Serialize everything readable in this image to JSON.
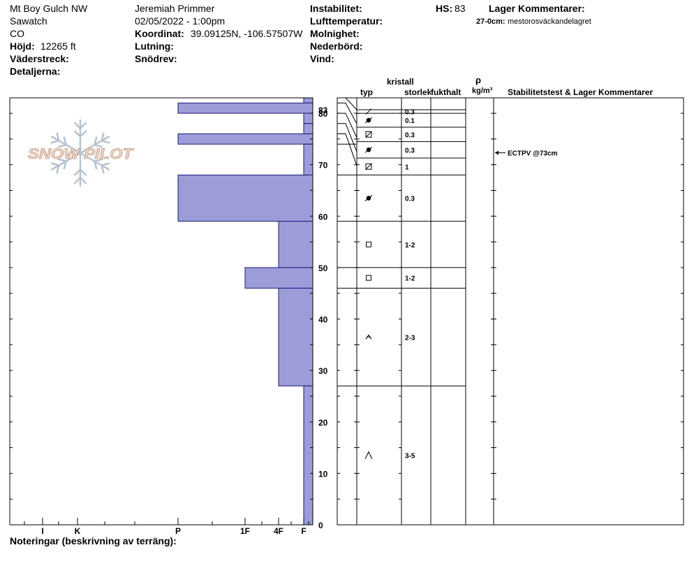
{
  "header": {
    "location": "Mt Boy Gulch NW",
    "range": "Sawatch",
    "state": "CO",
    "elevation_label": "Höjd:",
    "elevation_value": "12265 ft",
    "aspect_label": "Väderstreck:",
    "details_label": "Detaljerna:",
    "observer": "Jeremiah Primmer",
    "datetime": "02/05/2022 - 1:00pm",
    "coord_label": "Koordinat:",
    "coord_value": "39.09125N, -106.57507W",
    "slope_label": "Lutning:",
    "wind_loading_label": "Snödrev:",
    "instability_label": "Instabilitet:",
    "air_temp_label": "Lufttemperatur:",
    "sky_label": "Molnighet:",
    "precip_label": "Nederbörd:",
    "wind_label": "Vind:",
    "hs_label": "HS:",
    "hs_value": "83",
    "layer_comments_label": "Lager Kommentarer:",
    "layer_comment_range": "27-0cm:",
    "layer_comment_text": "mestorosväckandelagret"
  },
  "columns": {
    "crystal": "kristall",
    "type": "typ",
    "size": "storlek",
    "moisture": "fukthalt",
    "rho": "ρ",
    "density_unit": "kg/m³",
    "stability": "Stabilitetstest & Lager Kommentarer"
  },
  "footer": {
    "notes_label": "Noteringar (beskrivning av terräng):"
  },
  "logo": {
    "text": "SNOW PILOT"
  },
  "colors": {
    "hardness_fill": "#9c9cd8",
    "hardness_stroke": "#1a1a7a",
    "logo_flake": "#b7c3cf",
    "logo_text_fill": "#f2d8c8",
    "logo_text_stroke": "#c8a898"
  },
  "chart_data": {
    "type": "bar",
    "orientation": "horizontal",
    "title": "",
    "ylabel": "",
    "xlabel": "",
    "ylim": [
      0,
      83
    ],
    "y_ticks": [
      0,
      10,
      20,
      30,
      40,
      50,
      60,
      70,
      80,
      83
    ],
    "hardness_scale": [
      "I",
      "K",
      "P",
      "1F",
      "4F",
      "F"
    ],
    "hardness_ticks": [
      "I",
      "K",
      "P",
      "1F",
      "4F",
      "F"
    ],
    "layers": [
      {
        "top": 83,
        "bottom": 82,
        "hardness": "F",
        "grain": "faceted-decomposing",
        "size": ""
      },
      {
        "top": 82,
        "bottom": 80,
        "hardness": "P",
        "grain": "decomposing",
        "size": "0.3"
      },
      {
        "top": 80,
        "bottom": 78,
        "hardness": "F",
        "grain": "surface-hoar",
        "size": "0.1"
      },
      {
        "top": 78,
        "bottom": 76,
        "hardness": "F",
        "grain": "faceted-rounded",
        "size": "0.3"
      },
      {
        "top": 76,
        "bottom": 74,
        "hardness": "P",
        "grain": "surface-hoar",
        "size": "0.3"
      },
      {
        "top": 74,
        "bottom": 68,
        "hardness": "F",
        "grain": "faceted-rounded",
        "size": "1"
      },
      {
        "top": 68,
        "bottom": 59,
        "hardness": "P",
        "grain": "surface-hoar",
        "size": "0.3"
      },
      {
        "top": 59,
        "bottom": 50,
        "hardness": "4F",
        "grain": "faceted",
        "size": "1-2"
      },
      {
        "top": 50,
        "bottom": 46,
        "hardness": "1F",
        "grain": "faceted",
        "size": "1-2"
      },
      {
        "top": 46,
        "bottom": 27,
        "hardness": "4F",
        "grain": "depth-hoar-faceted",
        "size": "2-3"
      },
      {
        "top": 27,
        "bottom": 0,
        "hardness": "F",
        "grain": "depth-hoar",
        "size": "3-5"
      }
    ],
    "stability_tests": [
      {
        "depth": 73,
        "label": "ECTPV @73cm"
      }
    ]
  }
}
